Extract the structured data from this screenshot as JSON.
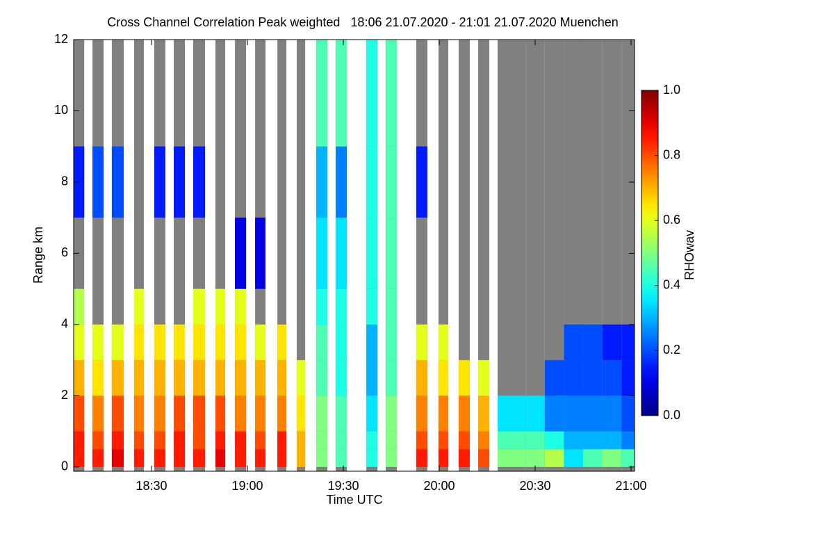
{
  "chart_data": {
    "type": "heatmap",
    "title": "Cross Channel Correlation Peak weighted   18:06 21.07.2020 - 21:01 21.07.2020 Muenchen",
    "x_label": "Time UTC",
    "y_label": "Range km",
    "colorbar_label": "RHOwav",
    "colormap": "jet",
    "mask_color": "#808080",
    "xlim": [
      18.094,
      21.018
    ],
    "xticks": [
      {
        "value": 18.5,
        "label": "18:30"
      },
      {
        "value": 19,
        "label": "19:00"
      },
      {
        "value": 19.5,
        "label": "19:30"
      },
      {
        "value": 20,
        "label": "20:00"
      },
      {
        "value": 20.5,
        "label": "20:30"
      },
      {
        "value": 21,
        "label": "21:00"
      }
    ],
    "ylim": [
      -0.12,
      12
    ],
    "yticks": [
      0,
      2,
      4,
      6,
      8,
      10,
      12
    ],
    "clim": [
      0,
      1
    ],
    "cticks": [
      {
        "value": 0,
        "label": "0.0"
      },
      {
        "value": 0.2,
        "label": "0.2"
      },
      {
        "value": 0.4,
        "label": "0.4"
      },
      {
        "value": 0.6,
        "label": "0.6"
      },
      {
        "value": 0.8,
        "label": "0.8"
      },
      {
        "value": 1,
        "label": "1.0"
      }
    ],
    "y_bins": [
      0,
      0.5,
      1,
      2,
      3,
      4,
      5,
      7,
      9,
      12
    ],
    "columns": [
      {
        "x": [
          18.094,
          18.149
        ],
        "z": [
          0.85,
          0.85,
          0.8,
          0.7,
          0.6,
          0.55,
          null,
          0.15,
          null
        ]
      },
      {
        "x": [
          18.192,
          18.25
        ],
        "z": [
          0.85,
          0.8,
          0.75,
          0.65,
          0.6,
          null,
          null,
          0.2,
          null
        ]
      },
      {
        "x": [
          18.293,
          18.355
        ],
        "z": [
          0.9,
          0.85,
          0.8,
          0.7,
          0.6,
          null,
          null,
          0.2,
          null
        ]
      },
      {
        "x": [
          18.409,
          18.46
        ],
        "z": [
          0.85,
          0.8,
          0.75,
          0.7,
          0.65,
          0.6,
          null,
          null,
          null
        ]
      },
      {
        "x": [
          18.514,
          18.572
        ],
        "z": [
          0.85,
          0.8,
          0.75,
          0.7,
          0.65,
          null,
          null,
          0.15,
          null
        ]
      },
      {
        "x": [
          18.616,
          18.674
        ],
        "z": [
          0.85,
          0.85,
          0.8,
          0.7,
          0.65,
          null,
          null,
          0.15,
          null
        ]
      },
      {
        "x": [
          18.717,
          18.779
        ],
        "z": [
          0.85,
          0.8,
          0.8,
          0.7,
          0.65,
          0.6,
          null,
          0.15,
          null
        ]
      },
      {
        "x": [
          18.833,
          18.884
        ],
        "z": [
          0.9,
          0.85,
          0.8,
          0.7,
          0.65,
          0.6,
          null,
          null,
          null
        ]
      },
      {
        "x": [
          18.935,
          18.993
        ],
        "z": [
          0.85,
          0.85,
          0.75,
          0.7,
          0.65,
          0.6,
          0.1,
          null,
          null
        ]
      },
      {
        "x": [
          19.04,
          19.094
        ],
        "z": [
          0.85,
          0.8,
          0.75,
          0.7,
          0.6,
          null,
          0.1,
          null,
          null
        ]
      },
      {
        "x": [
          19.156,
          19.203
        ],
        "z": [
          0.85,
          0.85,
          0.75,
          0.7,
          0.65,
          null,
          null,
          null,
          null
        ]
      },
      {
        "x": [
          19.257,
          19.301
        ],
        "z": [
          0.7,
          0.7,
          0.65,
          0.6,
          null,
          null,
          null,
          null,
          null
        ]
      },
      {
        "x": [
          19.359,
          19.417
        ],
        "z": [
          0.5,
          0.5,
          0.5,
          0.45,
          0.45,
          0.4,
          0.35,
          0.3,
          0.45
        ]
      },
      {
        "x": [
          19.46,
          19.518
        ],
        "z": [
          0.45,
          0.45,
          0.45,
          0.4,
          0.4,
          0.4,
          0.35,
          0.25,
          0.45
        ]
      },
      {
        "x": [
          19.62,
          19.678
        ],
        "z": [
          0.4,
          0.4,
          0.35,
          0.3,
          0.3,
          0.4,
          0.4,
          0.4,
          0.4
        ]
      },
      {
        "x": [
          19.721,
          19.779
        ],
        "z": [
          0.5,
          0.5,
          0.5,
          0.45,
          0.45,
          0.45,
          0.45,
          0.45,
          0.45
        ]
      },
      {
        "x": [
          19.88,
          19.938
        ],
        "z": [
          0.85,
          0.8,
          0.75,
          0.7,
          0.6,
          null,
          null,
          0.15,
          null
        ]
      },
      {
        "x": [
          19.996,
          20.047
        ],
        "z": [
          0.85,
          0.8,
          0.75,
          0.65,
          0.6,
          null,
          null,
          null,
          null
        ]
      },
      {
        "x": [
          20.101,
          20.159
        ],
        "z": [
          0.85,
          0.8,
          0.75,
          0.65,
          null,
          null,
          null,
          null,
          null
        ]
      },
      {
        "x": [
          20.203,
          20.261
        ],
        "z": [
          0.8,
          0.75,
          0.7,
          0.6,
          null,
          null,
          null,
          null,
          null
        ]
      },
      {
        "x": [
          20.304,
          20.45
        ],
        "z": [
          0.5,
          0.45,
          0.35,
          null,
          null,
          null,
          null,
          null,
          null
        ]
      },
      {
        "x": [
          20.45,
          20.55
        ],
        "z": [
          0.5,
          0.45,
          0.35,
          null,
          null,
          null,
          null,
          null,
          null
        ]
      },
      {
        "x": [
          20.55,
          20.65
        ],
        "z": [
          0.55,
          0.4,
          0.25,
          0.2,
          null,
          null,
          null,
          null,
          null
        ]
      },
      {
        "x": [
          20.65,
          20.75
        ],
        "z": [
          0.35,
          0.3,
          0.25,
          0.2,
          0.2,
          null,
          null,
          null,
          null
        ]
      },
      {
        "x": [
          20.75,
          20.85
        ],
        "z": [
          0.45,
          0.3,
          0.25,
          0.2,
          0.2,
          null,
          null,
          null,
          null
        ]
      },
      {
        "x": [
          20.85,
          20.95
        ],
        "z": [
          0.5,
          0.3,
          0.25,
          0.2,
          0.15,
          null,
          null,
          null,
          null
        ]
      },
      {
        "x": [
          20.95,
          21.018
        ],
        "z": [
          0.45,
          0.25,
          0.2,
          0.15,
          0.15,
          null,
          null,
          null,
          null
        ]
      }
    ]
  }
}
